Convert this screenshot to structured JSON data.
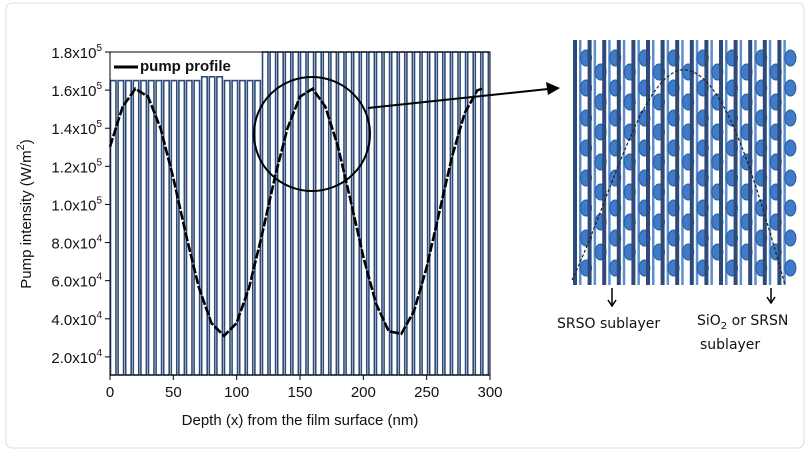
{
  "chart_data": {
    "type": "line",
    "ylabel": {
      "text": "Pump intensity (W/m",
      "sup": "2",
      "tail": ")"
    },
    "xlabel": "Depth (x) from the film surface (nm)",
    "xlim": [
      0,
      300
    ],
    "xticks": [
      0,
      50,
      100,
      150,
      200,
      250,
      300
    ],
    "ylim": [
      10500,
      180000
    ],
    "yticks": [
      {
        "value": 20000,
        "label": "2.0x10",
        "exp": "4"
      },
      {
        "value": 40000,
        "label": "4.0x10",
        "exp": "4"
      },
      {
        "value": 60000,
        "label": "6.0x10",
        "exp": "4"
      },
      {
        "value": 80000,
        "label": "8.0x10",
        "exp": "4"
      },
      {
        "value": 100000,
        "label": "1.0x10",
        "exp": "5"
      },
      {
        "value": 120000,
        "label": "1.2x10",
        "exp": "5"
      },
      {
        "value": 140000,
        "label": "1.4x10",
        "exp": "5"
      },
      {
        "value": 160000,
        "label": "1.6x10",
        "exp": "5"
      },
      {
        "value": 180000,
        "label": "1.8x10",
        "exp": "5"
      }
    ],
    "legend": "upper left",
    "layers": {
      "color": "#2e4a78",
      "x": [
        0,
        6,
        12,
        18,
        24,
        30,
        36,
        42,
        48,
        54,
        60,
        66,
        72,
        78,
        84,
        90,
        96,
        102,
        108,
        114,
        120,
        126,
        132,
        138,
        144,
        150,
        156,
        162,
        168,
        174,
        180,
        186,
        192,
        198,
        204,
        210,
        216,
        222,
        228,
        234,
        240,
        246,
        252,
        258,
        264,
        270,
        276,
        282,
        288,
        294
      ],
      "values": [
        165000,
        165000,
        165000,
        165000,
        165000,
        165000,
        165000,
        165000,
        165000,
        165000,
        165000,
        165000,
        167000,
        167000,
        167000,
        165000,
        165000,
        165000,
        165000,
        165000,
        180000,
        180000,
        180000,
        180000,
        180000,
        180000,
        180000,
        180000,
        180000,
        180000,
        180000,
        180000,
        180000,
        180000,
        180000,
        180000,
        180000,
        180000,
        180000,
        180000,
        180000,
        180000,
        180000,
        180000,
        180000,
        180000,
        180000,
        180000,
        180000,
        180000
      ]
    },
    "series": [
      {
        "name": "pump profile",
        "color": "#000000",
        "x": [
          0,
          10,
          20,
          30,
          40,
          50,
          60,
          70,
          80,
          90,
          100,
          110,
          120,
          130,
          140,
          150,
          160,
          170,
          180,
          190,
          200,
          210,
          220,
          230,
          240,
          250,
          260,
          270,
          280,
          290,
          295
        ],
        "values": [
          130300,
          151300,
          160700,
          156600,
          139800,
          113800,
          84100,
          56800,
          37800,
          31000,
          37800,
          56800,
          84100,
          113800,
          139800,
          156600,
          160700,
          151300,
          130300,
          102000,
          72500,
          48000,
          33500,
          32100,
          44000,
          67000,
          96000,
          125000,
          147900,
          159900,
          160900
        ]
      }
    ]
  },
  "annotations": {
    "srso": "SRSO sublayer",
    "sio": "SiO",
    "sio_sub": "2",
    "sio_tail": " or SRSN",
    "sublayer": "sublayer"
  }
}
